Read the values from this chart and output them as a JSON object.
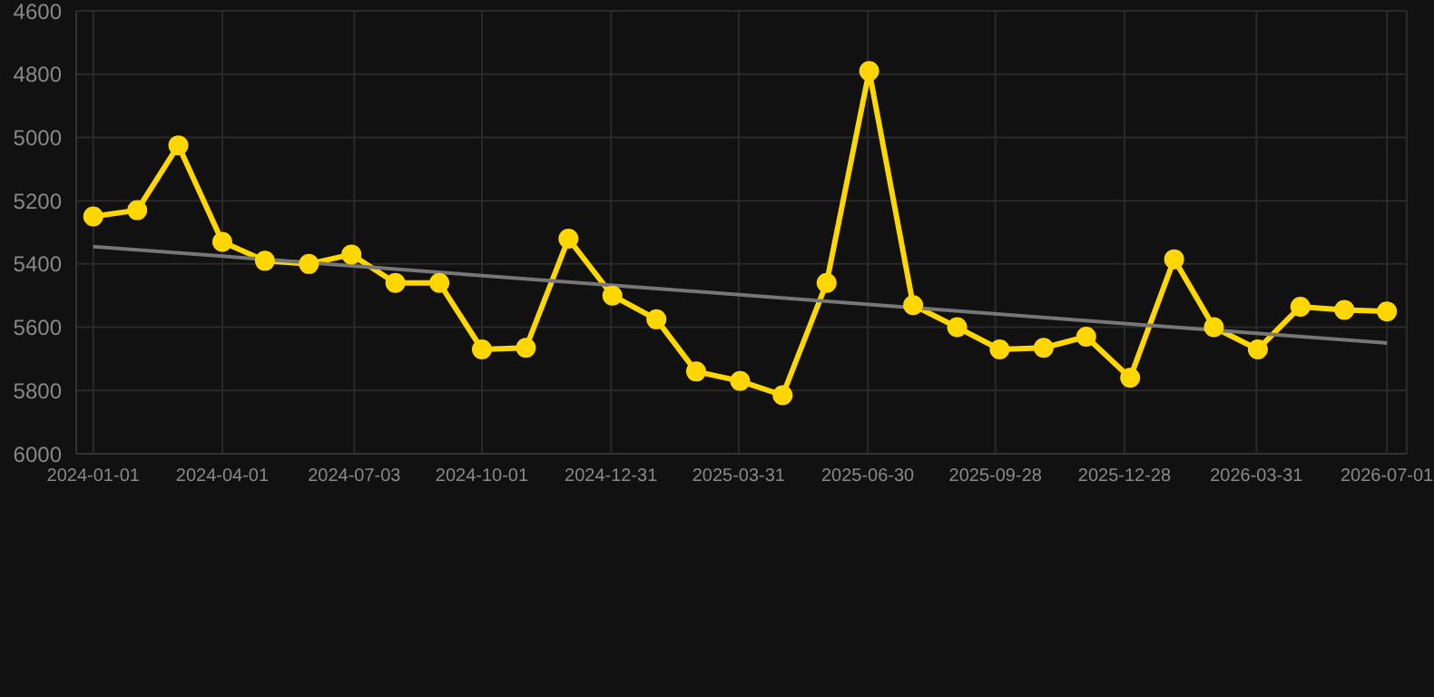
{
  "chart_data": {
    "type": "line",
    "x": [
      "2024-01-01",
      "2024-02-01",
      "2024-03-01",
      "2024-04-01",
      "2024-05-01",
      "2024-06-01",
      "2024-07-01",
      "2024-08-01",
      "2024-09-01",
      "2024-10-01",
      "2024-11-01",
      "2024-12-01",
      "2025-01-01",
      "2025-02-01",
      "2025-03-01",
      "2025-04-01",
      "2025-05-01",
      "2025-06-01",
      "2025-07-01",
      "2025-08-01",
      "2025-09-01",
      "2025-10-01",
      "2025-11-01",
      "2025-12-01",
      "2026-01-01",
      "2026-02-01",
      "2026-03-01",
      "2026-04-01",
      "2026-05-01",
      "2026-06-01",
      "2026-07-01"
    ],
    "series": [
      {
        "color": "#ffd700",
        "marker": "circle",
        "values": [
          5250,
          5230,
          5025,
          5330,
          5390,
          5400,
          5370,
          5460,
          5460,
          5670,
          5665,
          5320,
          5500,
          5575,
          5740,
          5770,
          5815,
          5460,
          4790,
          5530,
          5600,
          5670,
          5665,
          5630,
          5760,
          5385,
          5600,
          5670,
          5535,
          5545,
          5550
        ]
      },
      {
        "type": "line",
        "color": "#777777",
        "marker": "none",
        "x": [
          "2024-01-01",
          "2026-07-01"
        ],
        "values": [
          5345,
          5650
        ]
      }
    ],
    "ylim": [
      6000,
      4600
    ],
    "yticks": [
      4600,
      4800,
      5000,
      5200,
      5400,
      5600,
      5800,
      6000
    ],
    "xlim": [
      "2023-12-20",
      "2026-07-15"
    ],
    "xticks": [
      "2024-01-01",
      "2024-04-01",
      "2024-07-03",
      "2024-10-01",
      "2024-12-31",
      "2025-03-31",
      "2025-06-30",
      "2025-09-28",
      "2025-12-28",
      "2026-03-31",
      "2026-07-01"
    ],
    "grid": true
  }
}
